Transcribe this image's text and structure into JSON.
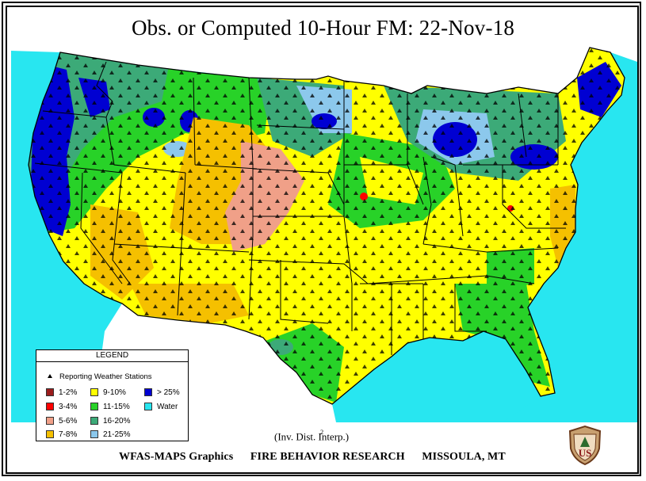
{
  "title": "Obs. or Computed 10-Hour FM:    22-Nov-18",
  "legend": {
    "heading": "LEGEND",
    "stations_label": "Reporting Weather Stations",
    "items": [
      {
        "label": "1-2%",
        "color": "#9b1c1c"
      },
      {
        "label": "3-4%",
        "color": "#ff0000"
      },
      {
        "label": "5-6%",
        "color": "#f0a088"
      },
      {
        "label": "7-8%",
        "color": "#f5c000"
      },
      {
        "label": "9-10%",
        "color": "#ffff00"
      },
      {
        "label": "11-15%",
        "color": "#28d228"
      },
      {
        "label": "16-20%",
        "color": "#3caa78"
      },
      {
        "label": "21-25%",
        "color": "#8cc8ec"
      },
      {
        "label": "> 25%",
        "color": "#0000d2"
      },
      {
        "label": "Water",
        "color": "#28e6f0"
      }
    ]
  },
  "interp_note": "(Inv. Dist.  Interp.)",
  "interp_exponent": "2",
  "footer": {
    "left": "WFAS-MAPS Graphics",
    "center": "FIRE BEHAVIOR RESEARCH",
    "right": "MISSOULA, MT"
  },
  "logo": {
    "icon": "forest-service-shield-icon",
    "text": "US"
  }
}
